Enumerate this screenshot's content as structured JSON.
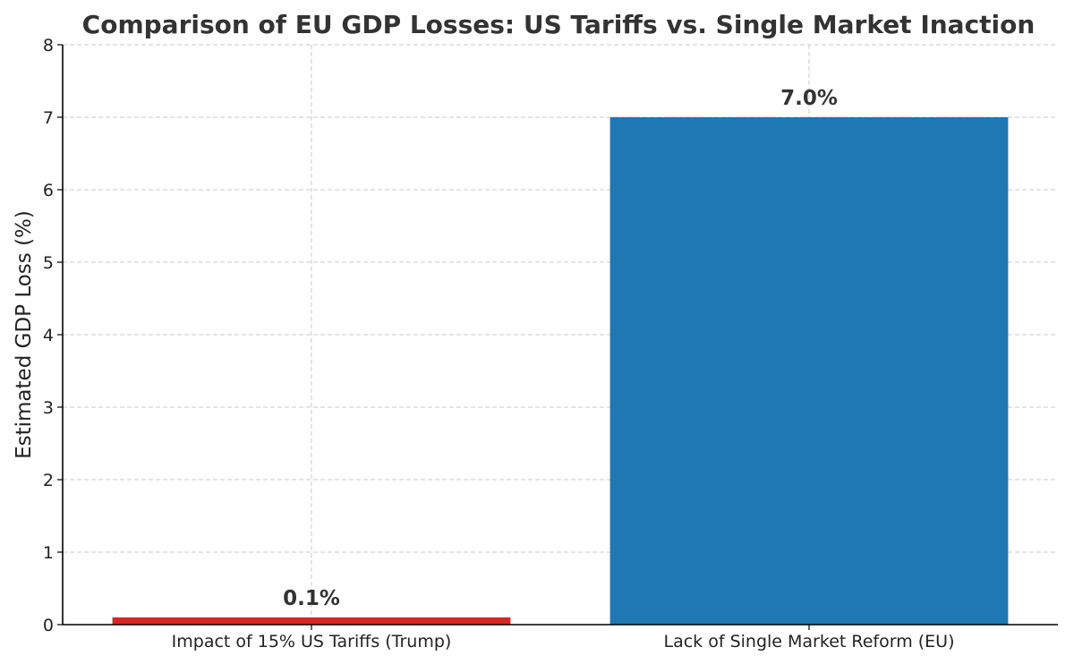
{
  "chart_data": {
    "type": "bar",
    "title": "Comparison of EU GDP Losses: US Tariffs vs. Single Market Inaction",
    "xlabel": "",
    "ylabel": "Estimated GDP Loss (%)",
    "ylim": [
      0,
      8
    ],
    "yticks": [
      "0",
      "1",
      "2",
      "3",
      "4",
      "5",
      "6",
      "7",
      "8"
    ],
    "grid": true,
    "categories": [
      "Impact of 15% US Tariffs (Trump)",
      "Lack of Single Market Reform (EU)"
    ],
    "values": [
      0.1,
      7.0
    ],
    "data_labels": [
      "0.1%",
      "7.0%"
    ],
    "colors": [
      "#d62728",
      "#1f77b4"
    ]
  }
}
